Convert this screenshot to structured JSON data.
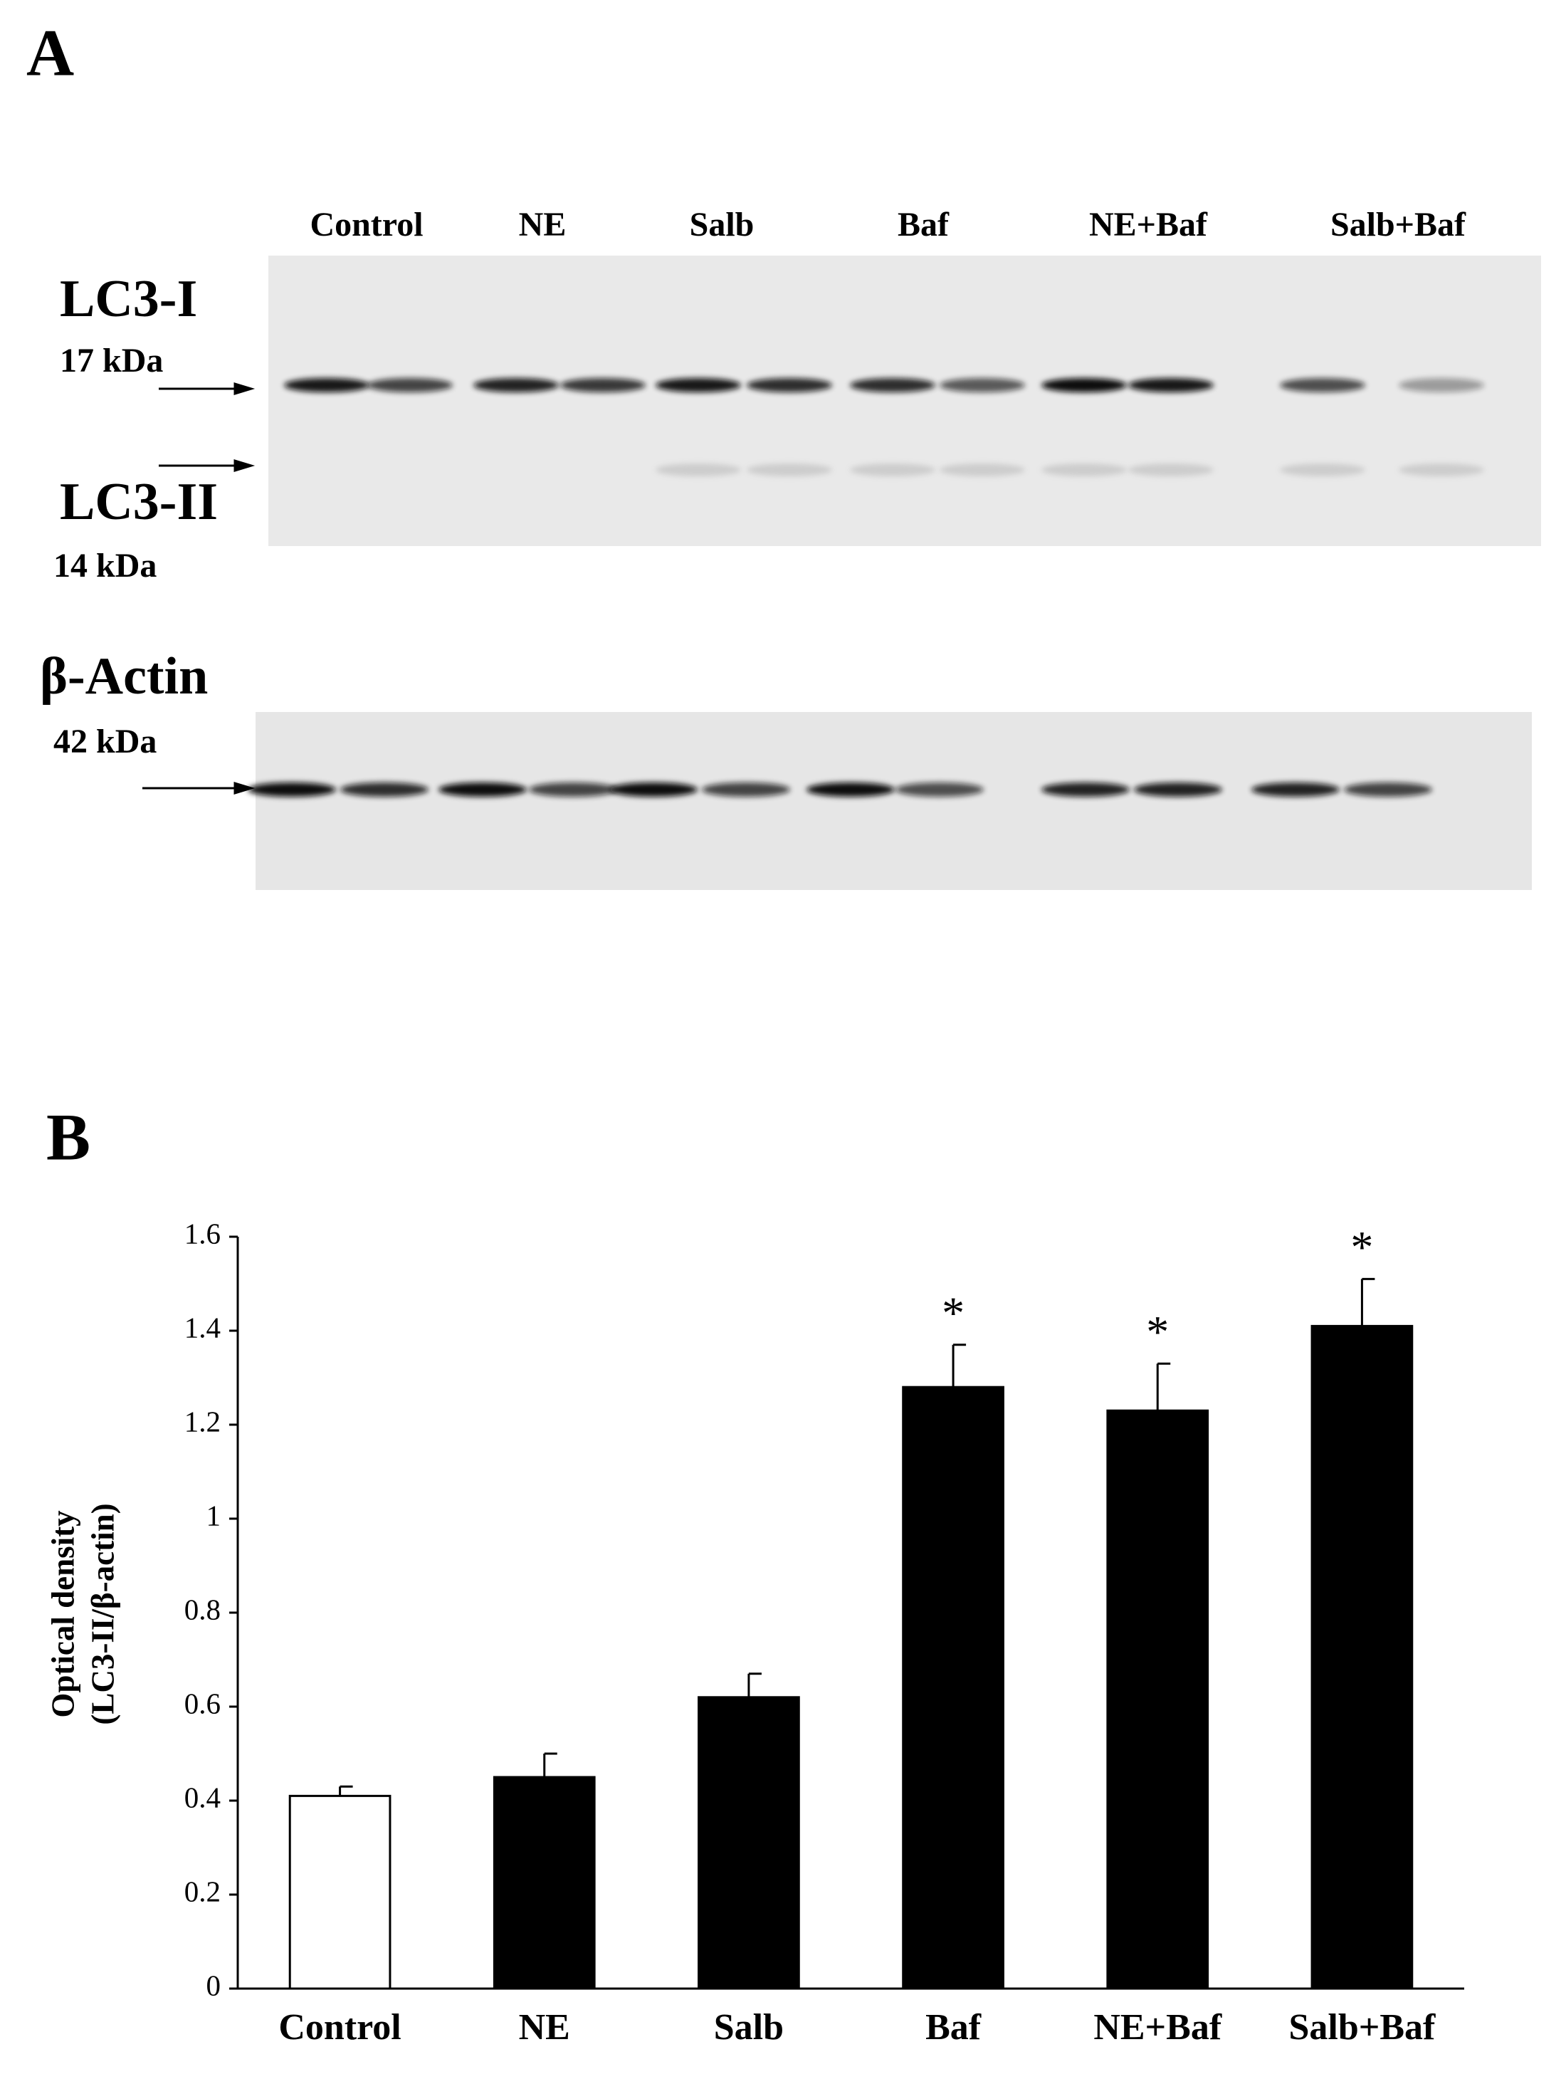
{
  "blot": {
    "panel_label": "A",
    "lanes": [
      "Control",
      "NE",
      "Salb",
      "Baf",
      "NE+Baf",
      "Salb+Baf"
    ],
    "bands": [
      {
        "name": "LC3-I",
        "size": "17 kDa"
      },
      {
        "name": "LC3-II",
        "size": "14 kDa"
      },
      {
        "name": "β-Actin",
        "size": "42 kDa"
      }
    ]
  },
  "chart_data": {
    "type": "bar",
    "panel_label": "B",
    "y_label": [
      "Optical density",
      "(LC3-II/β-actin)"
    ],
    "categories": [
      "Control",
      "NE",
      "Salb",
      "Baf",
      "NE+Baf",
      "Salb+Baf"
    ],
    "values": [
      0.41,
      0.45,
      0.62,
      1.28,
      1.23,
      1.41
    ],
    "errors": [
      0.02,
      0.05,
      0.05,
      0.09,
      0.1,
      0.1
    ],
    "colors": [
      "#ffffff",
      "#000000",
      "#000000",
      "#000000",
      "#000000",
      "#000000"
    ],
    "annotations": [
      null,
      null,
      null,
      "*",
      "*",
      "*"
    ],
    "ylim": [
      0,
      1.6
    ],
    "yticks": [
      0,
      0.2,
      0.4,
      0.6,
      0.8,
      1,
      1.2,
      1.4,
      1.6
    ],
    "grid": false
  }
}
